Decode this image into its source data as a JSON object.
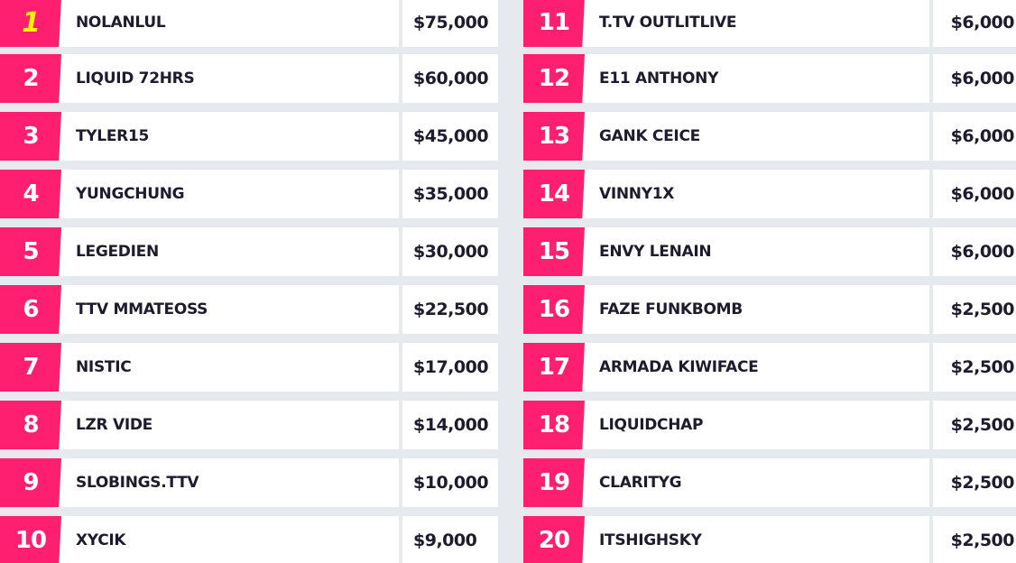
{
  "leaderboard": {
    "accent_color": "#ff1f70",
    "first_rank_color": "#fff200",
    "left_rows": [
      {
        "rank": "1",
        "name": "NOLANLUL",
        "prize": "$75,000"
      },
      {
        "rank": "2",
        "name": "LIQUID 72HRS",
        "prize": "$60,000"
      },
      {
        "rank": "3",
        "name": "TYLER15",
        "prize": "$45,000"
      },
      {
        "rank": "4",
        "name": "YUNGCHUNG",
        "prize": "$35,000"
      },
      {
        "rank": "5",
        "name": "LEGEDIEN",
        "prize": "$30,000"
      },
      {
        "rank": "6",
        "name": "TTV MMATEOSS",
        "prize": "$22,500"
      },
      {
        "rank": "7",
        "name": "NISTIC",
        "prize": "$17,000"
      },
      {
        "rank": "8",
        "name": "LZR VIDE",
        "prize": "$14,000"
      },
      {
        "rank": "9",
        "name": "SLOBINGS.TTV",
        "prize": "$10,000"
      },
      {
        "rank": "10",
        "name": "XYCIK",
        "prize": "$9,000"
      }
    ],
    "right_rows": [
      {
        "rank": "11",
        "name": "T.TV OUTLITLIVE",
        "prize": "$6,000"
      },
      {
        "rank": "12",
        "name": "E11 ANTHONY",
        "prize": "$6,000"
      },
      {
        "rank": "13",
        "name": "GANK CEICE",
        "prize": "$6,000"
      },
      {
        "rank": "14",
        "name": "VINNY1X",
        "prize": "$6,000"
      },
      {
        "rank": "15",
        "name": "ENVY LENAIN",
        "prize": "$6,000"
      },
      {
        "rank": "16",
        "name": "FAZE FUNKBOMB",
        "prize": "$2,500"
      },
      {
        "rank": "17",
        "name": "ARMADA KIWIFACE",
        "prize": "$2,500"
      },
      {
        "rank": "18",
        "name": "LIQUIDCHAP",
        "prize": "$2,500"
      },
      {
        "rank": "19",
        "name": "CLARITYG",
        "prize": "$2,500"
      },
      {
        "rank": "20",
        "name": "ITSHIGHSKY",
        "prize": "$2,500"
      }
    ]
  }
}
